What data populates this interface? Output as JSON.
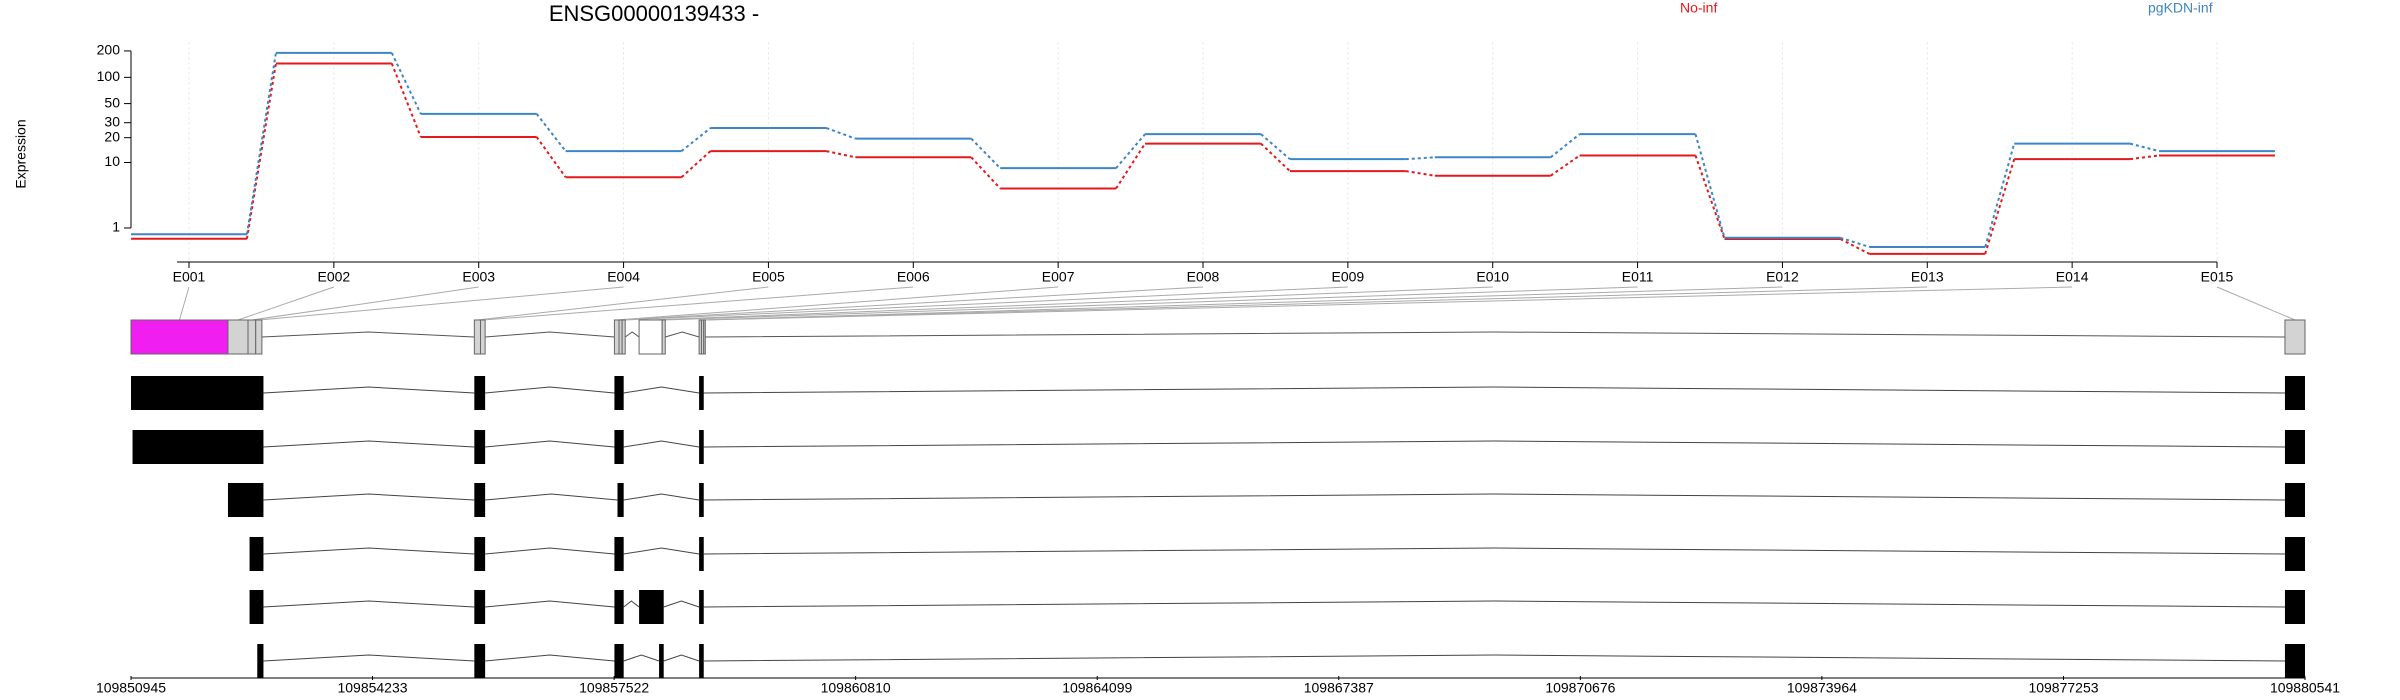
{
  "chart_data": [
    {
      "type": "line",
      "title": "ENSG00000139433 -",
      "y_label": "Expression",
      "categories": [
        "E001",
        "E002",
        "E003",
        "E004",
        "E005",
        "E006",
        "E007",
        "E008",
        "E009",
        "E010",
        "E011",
        "E012",
        "E013",
        "E014",
        "E015"
      ],
      "series": [
        {
          "name": "No-inf",
          "color": "#e3191c",
          "values": [
            0.51,
            144,
            20.4,
            6.5,
            13.8,
            11.6,
            4.6,
            17,
            7.8,
            6.8,
            12.2,
            0.5,
            0.02,
            11,
            12.2
          ]
        },
        {
          "name": "pgKDN-inf",
          "color": "#3d85c6",
          "values": [
            0.7,
            190,
            38,
            13.8,
            26,
            19.5,
            8.5,
            22,
            11,
            11.6,
            22,
            0.55,
            0.22,
            17,
            13.8
          ]
        }
      ],
      "yscale": "log1p",
      "ylim": [
        0,
        250
      ],
      "yticks": [
        1,
        10,
        20,
        30,
        50,
        100,
        200
      ],
      "grid": true
    },
    {
      "type": "gene_model",
      "xlim": [
        109850945,
        109880541
      ],
      "xticks": [
        109850945,
        109854233,
        109857522,
        109860810,
        109864099,
        109867387,
        109870676,
        109873964,
        109877253,
        109880541
      ],
      "exon_bins": [
        [
          109850945,
          109852265
        ],
        [
          109852265,
          109852538
        ],
        [
          109852538,
          109852643
        ],
        [
          109852643,
          109852727
        ],
        [
          109855619,
          109855703
        ],
        [
          109855703,
          109855766
        ],
        [
          109857526,
          109857589
        ],
        [
          109857589,
          109857631
        ],
        [
          109857631,
          109857673
        ],
        [
          109857862,
          109858176
        ],
        [
          109858176,
          109858218
        ],
        [
          109858679,
          109858711
        ],
        [
          109858711,
          109858742
        ],
        [
          109858742,
          109858763
        ],
        [
          109880268,
          109880541
        ]
      ],
      "bin_colors": [
        "#f01ef0",
        "#d3d3d3",
        "#d3d3d3",
        "#d3d3d3",
        "#d3d3d3",
        "#d3d3d3",
        "#d3d3d3",
        "#d3d3d3",
        "#d3d3d3",
        "#ffffff",
        "#d3d3d3",
        "#d3d3d3",
        "#d3d3d3",
        "#d3d3d3",
        "#d3d3d3"
      ],
      "transcripts": [
        [
          [
            109850945,
            109852748
          ],
          [
            109855619,
            109855766
          ],
          [
            109857526,
            109857652
          ],
          [
            109858679,
            109858742
          ],
          [
            109880268,
            109880541
          ]
        ],
        [
          [
            109850966,
            109852748
          ],
          [
            109855619,
            109855766
          ],
          [
            109857526,
            109857652
          ],
          [
            109858679,
            109858742
          ],
          [
            109880268,
            109880541
          ]
        ],
        [
          [
            109852265,
            109852748
          ],
          [
            109855619,
            109855766
          ],
          [
            109857568,
            109857652
          ],
          [
            109858679,
            109858742
          ],
          [
            109880268,
            109880541
          ]
        ],
        [
          [
            109852559,
            109852748
          ],
          [
            109855619,
            109855766
          ],
          [
            109857526,
            109857652
          ],
          [
            109858679,
            109858742
          ],
          [
            109880268,
            109880541
          ]
        ],
        [
          [
            109852559,
            109852748
          ],
          [
            109855619,
            109855766
          ],
          [
            109857526,
            109857652
          ],
          [
            109857862,
            109858197
          ],
          [
            109858679,
            109858742
          ],
          [
            109880268,
            109880541
          ]
        ],
        [
          [
            109852664,
            109852748
          ],
          [
            109855619,
            109855766
          ],
          [
            109857526,
            109857652
          ],
          [
            109858134,
            109858197
          ],
          [
            109858679,
            109858742
          ],
          [
            109880268,
            109880541
          ]
        ]
      ],
      "transcript_color": "#000000"
    }
  ]
}
